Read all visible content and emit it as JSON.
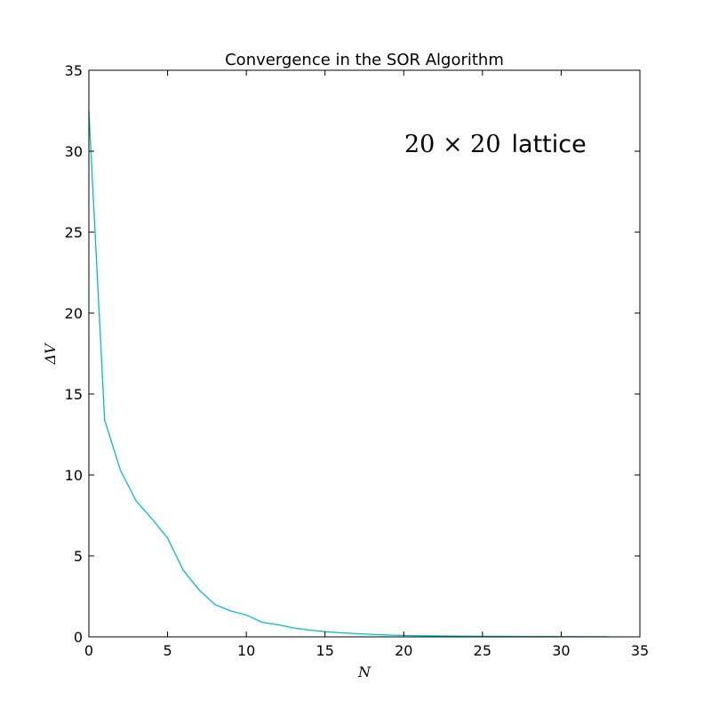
{
  "chart_data": {
    "type": "line",
    "title": "Convergence in the SOR Algorithm",
    "xlabel": "N",
    "ylabel": "ΔV",
    "xlim": [
      0,
      35
    ],
    "ylim": [
      0,
      35
    ],
    "x_ticks": [
      "0",
      "5",
      "10",
      "15",
      "20",
      "25",
      "30",
      "35"
    ],
    "y_ticks": [
      "0",
      "5",
      "10",
      "15",
      "20",
      "25",
      "30",
      "35"
    ],
    "grid": false,
    "annotation": {
      "math": "20 × 20",
      "text": "lattice"
    },
    "series": [
      {
        "color": "#00bfbf",
        "x": [
          0,
          1,
          2,
          3,
          4,
          5,
          6,
          7,
          8,
          9,
          10,
          11,
          12,
          13,
          14,
          15,
          16,
          17,
          18,
          19,
          20,
          21,
          22,
          23,
          24,
          25,
          26,
          27,
          28,
          29,
          30,
          31,
          32,
          33
        ],
        "y": [
          32.5,
          13.4,
          10.3,
          8.4,
          7.3,
          6.1,
          4.1,
          2.9,
          2.0,
          1.6,
          1.35,
          0.9,
          0.75,
          0.55,
          0.42,
          0.32,
          0.25,
          0.2,
          0.15,
          0.11,
          0.09,
          0.07,
          0.06,
          0.05,
          0.04,
          0.035,
          0.03,
          0.025,
          0.02,
          0.016,
          0.013,
          0.01,
          0.008,
          0.006
        ]
      }
    ]
  }
}
